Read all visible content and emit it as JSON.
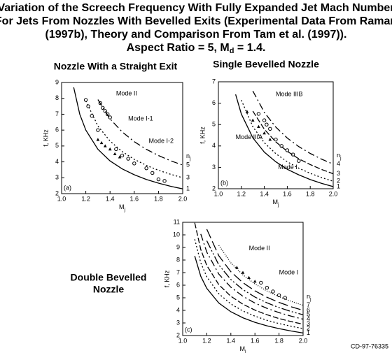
{
  "figure": {
    "title_lines": [
      "Variation of the Screech Frequency With Fully Expanded Jet Mach Number",
      "For Jets From Nozzles With Bevelled Exits (Experimental Data From Raman",
      "(1997b), Theory and Comparison From Tam et al. (1997))."
    ],
    "aspect": {
      "text": "Aspect Ratio = 5, M",
      "sub": "d",
      "tail": " = 1.4."
    },
    "id": "CD-97-76335"
  },
  "chart_data": [
    {
      "type": "line",
      "title": [
        "Nozzle With a Straight Exit"
      ],
      "panel": "(a)",
      "xlabel": "M",
      "xlabel_sub": "j",
      "ylabel": "f, KHz",
      "n_label": "n",
      "n_sub": "j",
      "xlim": [
        1.0,
        2.0
      ],
      "xticks": [
        {
          "value": 1.0,
          "label": "1.0"
        },
        1.2,
        1.4,
        1.6,
        1.8,
        {
          "value": 2.0,
          "label": "2.0"
        }
      ],
      "ylim": [
        2,
        9
      ],
      "yticks": [
        2,
        3,
        4,
        5,
        6,
        7,
        8,
        9
      ],
      "x": [
        1.1,
        1.15,
        1.2,
        1.3,
        1.4,
        1.5,
        1.6,
        1.7,
        1.8,
        1.9,
        2.0
      ],
      "series": [
        {
          "name": "1",
          "color": "#000000",
          "dash": "",
          "values": [
            8.69,
            7.0,
            6.0,
            4.79,
            4.06,
            3.56,
            3.19,
            2.89,
            2.66,
            2.46,
            2.3
          ]
        },
        {
          "name": "3",
          "color": "#000000",
          "dash": "2,3",
          "values": [
            null,
            null,
            7.84,
            6.26,
            5.31,
            4.65,
            4.16,
            3.78,
            3.47,
            3.22,
            3.0
          ]
        },
        {
          "name": "5",
          "color": "#000000",
          "dash": "10,4,2,4",
          "values": [
            null,
            null,
            null,
            7.92,
            6.71,
            5.89,
            5.27,
            4.79,
            4.4,
            4.07,
            3.8
          ]
        }
      ],
      "markers": [
        {
          "symbol": "circle",
          "x": [
            1.2,
            1.22,
            1.25,
            1.3,
            1.32,
            1.34,
            1.36,
            1.38,
            1.4,
            1.45,
            1.5,
            1.55,
            1.6,
            1.7,
            1.75,
            1.8,
            1.85
          ],
          "y": [
            7.9,
            7.5,
            6.9,
            6.0,
            7.7,
            7.4,
            7.2,
            7.0,
            6.8,
            4.8,
            4.4,
            4.2,
            3.9,
            3.6,
            3.3,
            2.9,
            2.8
          ]
        },
        {
          "symbol": "triangle",
          "x": [
            1.3,
            1.33,
            1.36,
            1.4,
            1.44,
            1.48
          ],
          "y": [
            5.4,
            5.2,
            5.0,
            4.8,
            4.5,
            4.3
          ]
        }
      ],
      "annotations": [
        "Mode II",
        "Mode I-1",
        "Mode I-2"
      ]
    },
    {
      "type": "line",
      "title": [
        "Single Bevelled Nozzle"
      ],
      "panel": "(b)",
      "xlabel": "M",
      "xlabel_sub": "j",
      "ylabel": "f, KHz",
      "n_label": "n",
      "n_sub": "j",
      "xlim": [
        1.0,
        2.0
      ],
      "xticks": [
        {
          "value": 1.0,
          "label": "1.0"
        },
        1.2,
        1.4,
        1.6,
        1.8,
        {
          "value": 2.0,
          "label": "2.0"
        }
      ],
      "ylim": [
        2,
        7
      ],
      "yticks": [
        2,
        3,
        4,
        5,
        6,
        7
      ],
      "x": [
        1.1,
        1.15,
        1.2,
        1.3,
        1.4,
        1.5,
        1.6,
        1.7,
        1.8,
        1.9,
        2.0
      ],
      "series": [
        {
          "name": "1",
          "color": "#000000",
          "dash": "",
          "values": [
            null,
            6.41,
            5.49,
            4.38,
            3.71,
            3.26,
            2.91,
            2.65,
            2.43,
            2.25,
            2.1
          ]
        },
        {
          "name": "2",
          "color": "#000000",
          "dash": "2,3",
          "values": [
            null,
            null,
            6.14,
            4.9,
            4.15,
            3.64,
            3.26,
            2.96,
            2.72,
            2.52,
            2.35
          ]
        },
        {
          "name": "3",
          "color": "#000000",
          "dash": "8,3",
          "values": [
            null,
            null,
            null,
            5.63,
            4.78,
            4.19,
            3.75,
            3.4,
            3.13,
            2.9,
            2.7
          ]
        },
        {
          "name": "4",
          "color": "#000000",
          "dash": "10,4,2,4",
          "values": [
            null,
            null,
            null,
            6.57,
            5.57,
            4.88,
            4.37,
            3.97,
            3.65,
            3.38,
            3.15
          ]
        }
      ],
      "markers": [
        {
          "symbol": "circle",
          "x": [
            1.35,
            1.4,
            1.42,
            1.45,
            1.5,
            1.55,
            1.6,
            1.65,
            1.7
          ],
          "y": [
            5.5,
            5.2,
            5.0,
            4.8,
            4.3,
            4.0,
            3.8,
            3.6,
            3.3
          ]
        },
        {
          "symbol": "triangle",
          "x": [
            1.25,
            1.3,
            1.35,
            1.4,
            1.45
          ],
          "y": [
            5.6,
            5.2,
            4.9,
            4.6,
            4.3
          ]
        }
      ],
      "annotations": [
        "Mode IIIB",
        "Mode IIIA",
        "Mode I"
      ]
    },
    {
      "type": "line",
      "title": [
        "Double Bevelled",
        "Nozzle"
      ],
      "panel": "(c)",
      "xlabel": "M",
      "xlabel_sub": "j",
      "ylabel": "f, KHz",
      "n_label": "n",
      "n_sub": "j",
      "xlim": [
        1.0,
        2.0
      ],
      "xticks": [
        {
          "value": 1.0,
          "label": "1.0"
        },
        1.2,
        1.4,
        1.6,
        1.8,
        {
          "value": 2.0,
          "label": "2.0"
        }
      ],
      "ylim": [
        2,
        11
      ],
      "yticks": [
        2,
        3,
        4,
        5,
        6,
        7,
        8,
        9,
        10,
        11
      ],
      "x": [
        1.1,
        1.15,
        1.2,
        1.3,
        1.4,
        1.5,
        1.6,
        1.7,
        1.8,
        1.9,
        2.0
      ],
      "series": [
        {
          "name": "1",
          "color": "#000000",
          "dash": "",
          "values": [
            8.32,
            6.71,
            5.75,
            4.58,
            3.89,
            3.41,
            3.05,
            2.77,
            2.55,
            2.36,
            2.2
          ]
        },
        {
          "name": "2",
          "color": "#000000",
          "dash": "2,3",
          "values": [
            9.65,
            7.78,
            6.67,
            5.32,
            4.51,
            3.95,
            3.54,
            3.21,
            2.95,
            2.74,
            2.55
          ]
        },
        {
          "name": "3",
          "color": "#000000",
          "dash": "8,3",
          "values": [
            10.96,
            8.84,
            7.57,
            6.04,
            5.12,
            4.49,
            4.02,
            3.65,
            3.35,
            3.11,
            2.9
          ]
        },
        {
          "name": "4",
          "color": "#000000",
          "dash": "10,4,2,4",
          "values": [
            null,
            10.07,
            8.63,
            6.88,
            5.84,
            5.12,
            4.58,
            4.16,
            3.82,
            3.54,
            3.3
          ]
        },
        {
          "name": "5",
          "color": "#000000",
          "dash": "12,3,2,3,2,3",
          "values": [
            null,
            null,
            9.53,
            7.61,
            6.45,
            5.65,
            5.06,
            4.6,
            4.22,
            3.91,
            3.65
          ]
        },
        {
          "name": "6",
          "color": "#000000",
          "dash": "14,5",
          "values": [
            null,
            null,
            10.45,
            8.34,
            7.07,
            6.2,
            5.55,
            5.04,
            4.63,
            4.29,
            4.0
          ]
        },
        {
          "name": "7",
          "color": "#000000",
          "dash": "1,2",
          "values": [
            null,
            null,
            null,
            9.17,
            7.78,
            6.82,
            6.1,
            5.54,
            5.09,
            4.72,
            4.4
          ]
        }
      ],
      "markers": [
        {
          "symbol": "circle",
          "x": [
            1.65,
            1.7,
            1.75,
            1.8,
            1.85
          ],
          "y": [
            6.2,
            5.8,
            5.5,
            5.2,
            5.0
          ]
        },
        {
          "symbol": "triangle",
          "x": [
            1.45,
            1.5,
            1.55,
            1.6
          ],
          "y": [
            7.4,
            7.0,
            6.6,
            6.3
          ]
        }
      ],
      "annotations": [
        "Mode II",
        "Mode I"
      ]
    }
  ]
}
